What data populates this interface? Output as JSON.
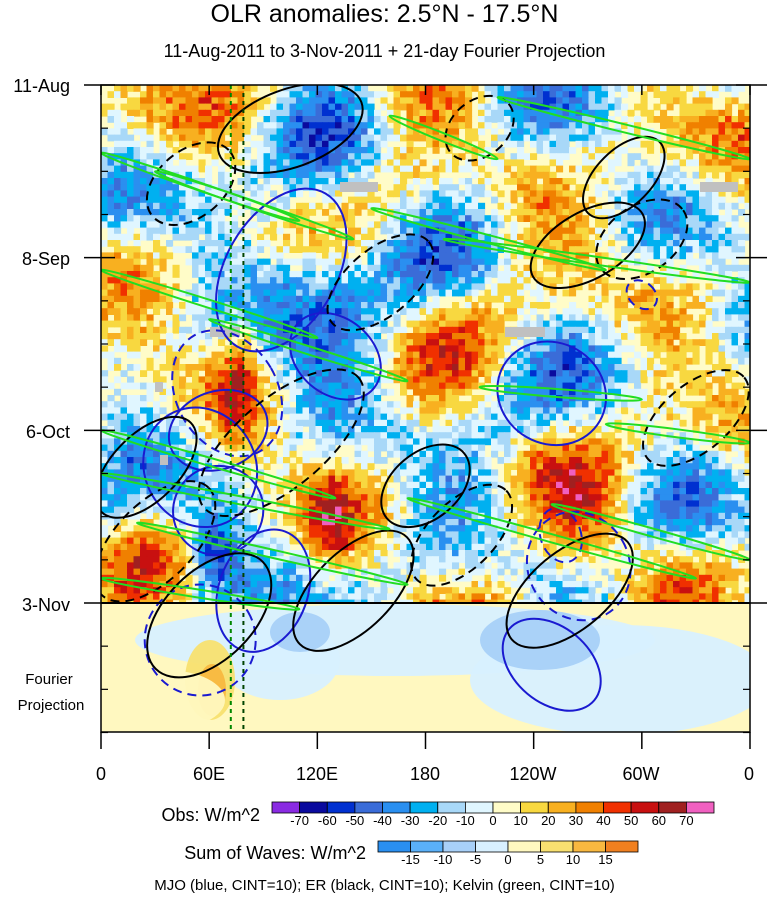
{
  "chart_data": {
    "type": "heatmap",
    "title": "OLR anomalies: 2.5°N - 17.5°N",
    "subtitle": "11-Aug-2011 to 3-Nov-2011 + 21-day Fourier Projection",
    "x_ticks": [
      "0",
      "60E",
      "120E",
      "180",
      "120W",
      "60W",
      "0"
    ],
    "x_range_deg": [
      0,
      360
    ],
    "y_ticks": [
      "11-Aug",
      "8-Sep",
      "6-Oct",
      "3-Nov"
    ],
    "y_range_days": [
      0,
      105
    ],
    "obs_end_day": 84,
    "projection_label_line1": "Fourier",
    "projection_label_line2": "Projection",
    "obs_colorbar": {
      "label": "Obs: W/m^2",
      "levels": [
        "-70",
        "-60",
        "-50",
        "-40",
        "-30",
        "-20",
        "-10",
        "0",
        "10",
        "20",
        "30",
        "40",
        "50",
        "60",
        "70"
      ],
      "colors": [
        "#8a2be2",
        "#0a0a9e",
        "#0030d0",
        "#3a6cd8",
        "#2a8ff0",
        "#00b0f0",
        "#a8d8f8",
        "#e0f6ff",
        "#fffcc8",
        "#f8d840",
        "#f8b020",
        "#f08000",
        "#f03000",
        "#c81010",
        "#a02020",
        "#f060c0"
      ]
    },
    "waves_colorbar": {
      "label": "Sum of Waves: W/m^2",
      "levels": [
        "-15",
        "-10",
        "-5",
        "0",
        "5",
        "10",
        "15"
      ],
      "colors": [
        "#2a8ff0",
        "#5ab0f8",
        "#a8d0f8",
        "#d8f0ff",
        "#fff8c0",
        "#f8e070",
        "#f8b840",
        "#f08020"
      ]
    },
    "footer": "MJO (blue, CINT=10); ER (black, CINT=10); Kelvin (green, CINT=10)",
    "contours": {
      "mjo": [
        {
          "lon": 55,
          "day": 62,
          "a": 22,
          "b": 11,
          "angle": -30,
          "dashed": false
        },
        {
          "lon": 65,
          "day": 69,
          "a": 18,
          "b": 8,
          "angle": -30,
          "dashed": false
        },
        {
          "lon": 100,
          "day": 30,
          "a": 35,
          "b": 10,
          "angle": -60,
          "dashed": false
        },
        {
          "lon": 130,
          "day": 44,
          "a": 15,
          "b": 9,
          "angle": -50,
          "dashed": false
        },
        {
          "lon": 250,
          "day": 50,
          "a": 20,
          "b": 10,
          "angle": -60,
          "dashed": false
        },
        {
          "lon": 250,
          "day": 94,
          "a": 15,
          "b": 10,
          "angle": -50,
          "dashed": false
        },
        {
          "lon": 90,
          "day": 82,
          "a": 25,
          "b": 8,
          "angle": -70,
          "dashed": false
        },
        {
          "lon": 65,
          "day": 56,
          "a": 20,
          "b": 7,
          "angle": -20,
          "dashed": false
        },
        {
          "lon": 70,
          "day": 50,
          "a": 20,
          "b": 12,
          "angle": -30,
          "dashed": true
        },
        {
          "lon": 55,
          "day": 90,
          "a": 22,
          "b": 10,
          "angle": -30,
          "dashed": true
        },
        {
          "lon": 265,
          "day": 78,
          "a": 20,
          "b": 10,
          "angle": -30,
          "dashed": true
        },
        {
          "lon": 255,
          "day": 73,
          "a": 8,
          "b": 5,
          "angle": -20,
          "dashed": true
        },
        {
          "lon": 300,
          "day": 34,
          "a": 5,
          "b": 3,
          "angle": -50,
          "dashed": true
        }
      ],
      "er": [
        {
          "lon": 290,
          "day": 15,
          "a": 20,
          "b": 5,
          "angle": -45,
          "dashed": false
        },
        {
          "lon": 270,
          "day": 26,
          "a": 25,
          "b": 6,
          "angle": -30,
          "dashed": false
        },
        {
          "lon": 105,
          "day": 7,
          "a": 30,
          "b": 7,
          "angle": -20,
          "dashed": false
        },
        {
          "lon": 60,
          "day": 86,
          "a": 30,
          "b": 8,
          "angle": -45,
          "dashed": false
        },
        {
          "lon": 140,
          "day": 82,
          "a": 30,
          "b": 7,
          "angle": -45,
          "dashed": false
        },
        {
          "lon": 260,
          "day": 82,
          "a": 30,
          "b": 7,
          "angle": -40,
          "dashed": false
        },
        {
          "lon": 25,
          "day": 62,
          "a": 25,
          "b": 6,
          "angle": -45,
          "dashed": false
        },
        {
          "lon": 180,
          "day": 65,
          "a": 20,
          "b": 6,
          "angle": -40,
          "dashed": false
        },
        {
          "lon": 100,
          "day": 58,
          "a": 40,
          "b": 8,
          "angle": -40,
          "dashed": true
        },
        {
          "lon": 30,
          "day": 74,
          "a": 30,
          "b": 7,
          "angle": -45,
          "dashed": true
        },
        {
          "lon": 200,
          "day": 73,
          "a": 25,
          "b": 6,
          "angle": -45,
          "dashed": true
        },
        {
          "lon": 330,
          "day": 54,
          "a": 25,
          "b": 6,
          "angle": -40,
          "dashed": true
        },
        {
          "lon": 300,
          "day": 25,
          "a": 20,
          "b": 6,
          "angle": -35,
          "dashed": true
        },
        {
          "lon": 210,
          "day": 7,
          "a": 15,
          "b": 5,
          "angle": -40,
          "dashed": true
        },
        {
          "lon": 50,
          "day": 16,
          "a": 20,
          "b": 6,
          "angle": -40,
          "dashed": true
        },
        {
          "lon": 155,
          "day": 32,
          "a": 25,
          "b": 6,
          "angle": -40,
          "dashed": true
        }
      ],
      "kelvin": [
        {
          "x1": 0,
          "d1": 11,
          "x2": 110,
          "d2": 22
        },
        {
          "x1": 30,
          "d1": 14,
          "x2": 140,
          "d2": 25
        },
        {
          "x1": 150,
          "d1": 20,
          "x2": 280,
          "d2": 30
        },
        {
          "x1": 160,
          "d1": 5,
          "x2": 220,
          "d2": 12
        },
        {
          "x1": 220,
          "d1": 2,
          "x2": 360,
          "d2": 12
        },
        {
          "x1": 190,
          "d1": 25,
          "x2": 360,
          "d2": 32
        },
        {
          "x1": 0,
          "d1": 30,
          "x2": 120,
          "d2": 41
        },
        {
          "x1": 60,
          "d1": 38,
          "x2": 170,
          "d2": 48
        },
        {
          "x1": 210,
          "d1": 49,
          "x2": 300,
          "d2": 51
        },
        {
          "x1": 280,
          "d1": 55,
          "x2": 360,
          "d2": 58
        },
        {
          "x1": 0,
          "d1": 56,
          "x2": 130,
          "d2": 67
        },
        {
          "x1": 0,
          "d1": 63,
          "x2": 160,
          "d2": 72
        },
        {
          "x1": 170,
          "d1": 67,
          "x2": 330,
          "d2": 80
        },
        {
          "x1": 20,
          "d1": 71,
          "x2": 170,
          "d2": 81
        },
        {
          "x1": 250,
          "d1": 68,
          "x2": 360,
          "d2": 77
        },
        {
          "x1": 0,
          "d1": 80,
          "x2": 110,
          "d2": 85
        }
      ]
    }
  }
}
